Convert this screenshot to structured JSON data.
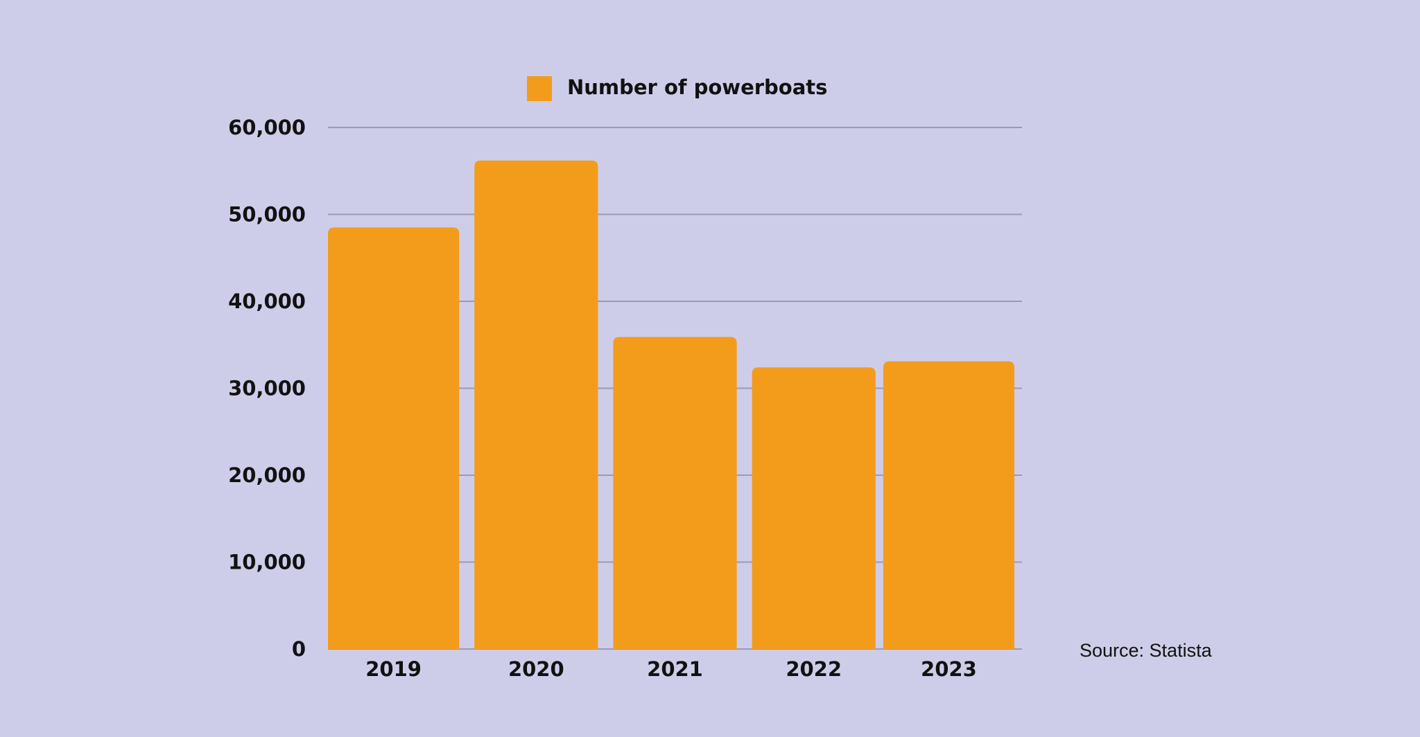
{
  "chart_data": {
    "type": "bar",
    "categories": [
      "2019",
      "2020",
      "2021",
      "2022",
      "2023"
    ],
    "series": [
      {
        "name": "Number of powerboats",
        "values": [
          48500,
          56200,
          35900,
          32400,
          33100
        ]
      }
    ],
    "title": "",
    "xlabel": "",
    "ylabel": "",
    "ylim": [
      0,
      60000
    ],
    "yticks": [
      0,
      10000,
      20000,
      30000,
      40000,
      50000,
      60000
    ],
    "ytick_labels": [
      "0",
      "10,000",
      "20,000",
      "30,000",
      "40,000",
      "50,000",
      "60,000"
    ],
    "grid": true,
    "legend_position": "top-center",
    "colors": {
      "bar": "#F39C1C",
      "grid": "#9B9AB3",
      "background": "#CECDE9",
      "text": "#111111"
    }
  },
  "source": "Source: Statista"
}
